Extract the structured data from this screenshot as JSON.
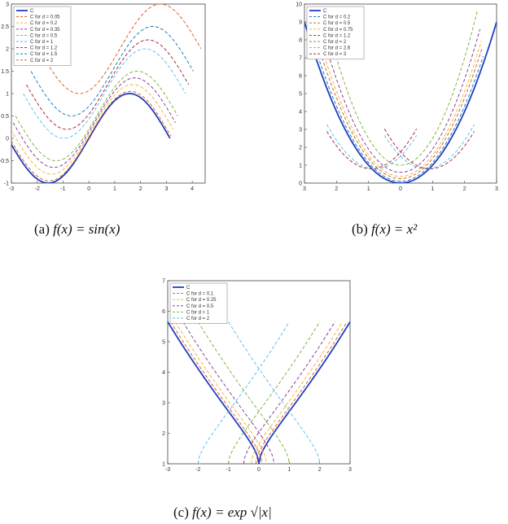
{
  "captions": [
    {
      "label": "(a)",
      "text": "f(x) = sin(x)"
    },
    {
      "label": "(b)",
      "text": "f(x) = x²"
    },
    {
      "label": "(c)",
      "text": "f(x) = exp √|x|"
    }
  ],
  "chart_data": [
    {
      "type": "line",
      "function": "sin",
      "xlim": [
        -3,
        4.5
      ],
      "ylim": [
        -1,
        3
      ],
      "xticks": [
        "-3",
        "-2",
        "-1",
        "0",
        "1",
        "2",
        "3",
        "4"
      ],
      "yticks": [
        "-1",
        "-0.5",
        "0",
        "0.5",
        "1",
        "1.5",
        "2",
        "2.5",
        "3"
      ],
      "legend_position": "top-left",
      "grid": false,
      "series": [
        {
          "name": "C",
          "color": "#1f3fbf",
          "dash": "solid",
          "offset": 0
        },
        {
          "name": "C for d = 0.05",
          "color": "#d9541a",
          "dash": "dashed",
          "offset": 0.05
        },
        {
          "name": "C for d = 0.2",
          "color": "#edb120",
          "dash": "dashed",
          "offset": 0.2
        },
        {
          "name": "C for d = 0.35",
          "color": "#7e2f8e",
          "dash": "dashed",
          "offset": 0.35
        },
        {
          "name": "C for d = 0.5",
          "color": "#77ac30",
          "dash": "dashed",
          "offset": 0.5
        },
        {
          "name": "C for d = 1",
          "color": "#4dbeee",
          "dash": "dashed",
          "offset": 1.0
        },
        {
          "name": "C for d = 1.2",
          "color": "#a2142f",
          "dash": "dashed",
          "offset": 1.2
        },
        {
          "name": "C for d = 1.5",
          "color": "#0072bd",
          "dash": "dashed",
          "offset": 1.5
        },
        {
          "name": "C for d = 2",
          "color": "#d9541a",
          "dash": "dashed",
          "offset": 2.0
        }
      ]
    },
    {
      "type": "line",
      "function": "square",
      "xlim": [
        -3,
        3
      ],
      "ylim": [
        0,
        10
      ],
      "xticks": [
        "3",
        "2",
        "1",
        "0",
        "1",
        "2",
        "3"
      ],
      "yticks": [
        "0",
        "1",
        "2",
        "3",
        "4",
        "5",
        "6",
        "7",
        "8",
        "9",
        "10"
      ],
      "legend_position": "top-left",
      "grid": false,
      "series": [
        {
          "name": "C",
          "color": "#1f3fbf",
          "dash": "solid",
          "d": 0
        },
        {
          "name": "C for d = 0.2",
          "color": "#0072bd",
          "dash": "dashed",
          "d": 0.2
        },
        {
          "name": "C for d = 0.5",
          "color": "#d9541a",
          "dash": "dashed",
          "d": 0.5
        },
        {
          "name": "C for d = 0.75",
          "color": "#edb120",
          "dash": "dashed",
          "d": 0.75
        },
        {
          "name": "C for d = 1.2",
          "color": "#7e2f8e",
          "dash": "dashed",
          "d": 1.2
        },
        {
          "name": "C for d = 2",
          "color": "#77ac30",
          "dash": "dashed",
          "d": 2.0
        },
        {
          "name": "C for d = 2.6",
          "color": "#4dbeee",
          "dash": "dashed",
          "d": 2.6
        },
        {
          "name": "C for d = 3",
          "color": "#a2142f",
          "dash": "dashed",
          "d": 3.0
        }
      ]
    },
    {
      "type": "line",
      "function": "exp_sqrt_abs",
      "xlim": [
        -3,
        3
      ],
      "ylim": [
        1,
        7
      ],
      "xticks": [
        "-3",
        "-2",
        "-1",
        "0",
        "1",
        "2",
        "3"
      ],
      "yticks": [
        "1",
        "2",
        "3",
        "4",
        "5",
        "6",
        "7"
      ],
      "legend_position": "top-left",
      "grid": false,
      "series": [
        {
          "name": "C",
          "color": "#1f3fbf",
          "dash": "solid",
          "d": 0
        },
        {
          "name": "C for d = 0.1",
          "color": "#d9541a",
          "dash": "dashed",
          "d": 0.1
        },
        {
          "name": "C for d = 0.25",
          "color": "#edb120",
          "dash": "dashed",
          "d": 0.25
        },
        {
          "name": "C for d = 0.5",
          "color": "#7e2f8e",
          "dash": "dashed",
          "d": 0.5
        },
        {
          "name": "C for d = 1",
          "color": "#77ac30",
          "dash": "dashed",
          "d": 1.0
        },
        {
          "name": "C for d = 2",
          "color": "#4dbeee",
          "dash": "dashed",
          "d": 2.0
        }
      ]
    }
  ]
}
